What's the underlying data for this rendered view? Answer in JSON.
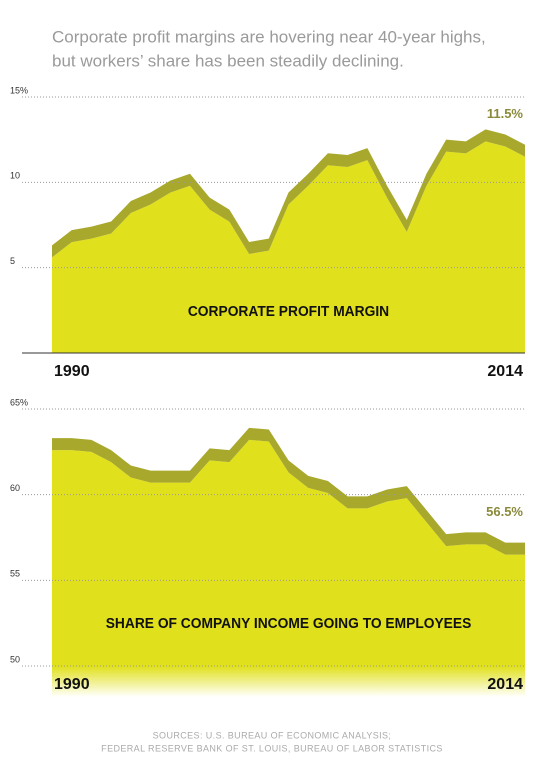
{
  "title_lines": [
    "Corporate profit margins are hovering near 40-year highs,",
    "but workers’ share has been steadily declining."
  ],
  "chart_data": [
    {
      "type": "area",
      "label": "CORPORATE PROFIT MARGIN",
      "x": [
        1990,
        1991,
        1992,
        1993,
        1994,
        1995,
        1996,
        1997,
        1998,
        1999,
        2000,
        2001,
        2002,
        2003,
        2004,
        2005,
        2006,
        2007,
        2008,
        2009,
        2010,
        2011,
        2012,
        2013,
        2014
      ],
      "values": [
        5.6,
        6.5,
        6.7,
        7.0,
        8.2,
        8.7,
        9.4,
        9.8,
        8.4,
        7.7,
        5.8,
        6.0,
        8.7,
        9.8,
        11.0,
        10.9,
        11.3,
        9.1,
        7.1,
        9.8,
        11.8,
        11.7,
        12.4,
        12.1,
        11.5
      ],
      "value_labels": [
        null,
        null,
        null,
        null,
        null,
        null,
        null,
        null,
        null,
        null,
        null,
        null,
        null,
        null,
        null,
        null,
        null,
        null,
        null,
        null,
        null,
        null,
        null,
        null,
        "11.5%"
      ],
      "color": "#e0e01c",
      "edge_color": "#a8a82c",
      "xlim": [
        1990,
        2014
      ],
      "xticks": [
        1990,
        2014
      ],
      "ylim": [
        0,
        15
      ],
      "yticks": [
        5,
        10,
        {
          "value": 15,
          "label": "15%"
        }
      ],
      "grid": true
    },
    {
      "type": "area",
      "label": "SHARE OF COMPANY INCOME GOING TO EMPLOYEES",
      "x": [
        1990,
        1991,
        1992,
        1993,
        1994,
        1995,
        1996,
        1997,
        1998,
        1999,
        2000,
        2001,
        2002,
        2003,
        2004,
        2005,
        2006,
        2007,
        2008,
        2009,
        2010,
        2011,
        2012,
        2013,
        2014
      ],
      "values": [
        62.6,
        62.6,
        62.5,
        61.9,
        61.0,
        60.7,
        60.7,
        60.7,
        62.0,
        61.9,
        63.2,
        63.1,
        61.3,
        60.4,
        60.1,
        59.2,
        59.2,
        59.6,
        59.8,
        58.4,
        57.0,
        57.1,
        57.1,
        56.5,
        56.5
      ],
      "value_labels": [
        null,
        null,
        null,
        null,
        null,
        null,
        null,
        null,
        null,
        null,
        null,
        null,
        null,
        null,
        null,
        null,
        null,
        null,
        null,
        null,
        null,
        null,
        null,
        null,
        "56.5%"
      ],
      "color": "#e0e01c",
      "edge_color": "#a8a82c",
      "xlim": [
        1990,
        2014
      ],
      "xticks": [
        1990,
        2014
      ],
      "ylim": [
        50,
        65
      ],
      "yticks": [
        50,
        55,
        60,
        {
          "value": 65,
          "label": "65%"
        }
      ],
      "grid": true
    }
  ],
  "sources": [
    "SOURCES: U.S. BUREAU OF ECONOMIC ANALYSIS;",
    "FEDERAL RESERVE BANK OF ST. LOUIS, BUREAU OF LABOR STATISTICS"
  ]
}
